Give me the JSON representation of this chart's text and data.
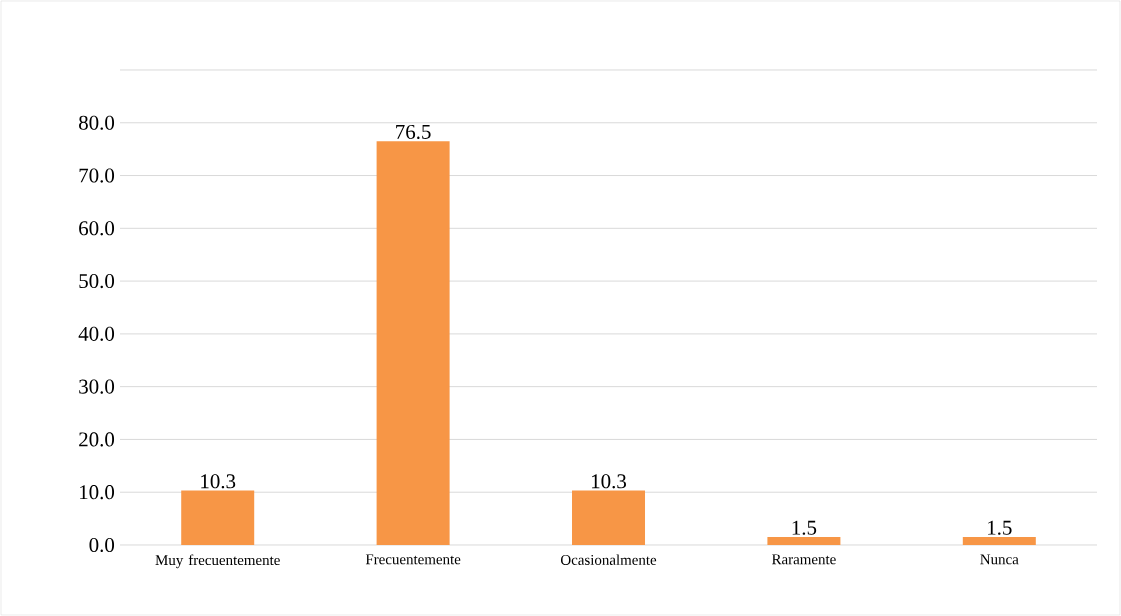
{
  "chart_data": {
    "type": "bar",
    "categories": [
      "Muy frecuentemente",
      "Frecuentemente",
      "Ocasionalmente",
      "Raramente",
      "Nunca"
    ],
    "values": [
      10.3,
      76.5,
      10.3,
      1.5,
      1.5
    ],
    "color": "#f79646",
    "data_labels": true,
    "grid": "y",
    "ylim": [
      0,
      90
    ],
    "yticks": [
      {
        "value": 0,
        "label": "0.0"
      },
      {
        "value": 10,
        "label": "10.0"
      },
      {
        "value": 20,
        "label": "20.0"
      },
      {
        "value": 30,
        "label": "30.0"
      },
      {
        "value": 40,
        "label": "40.0"
      },
      {
        "value": 50,
        "label": "50.0"
      },
      {
        "value": 60,
        "label": "60.0"
      },
      {
        "value": 70,
        "label": "70.0"
      },
      {
        "value": 80,
        "label": "80.0"
      },
      {
        "value": 90,
        "label": null
      }
    ]
  }
}
